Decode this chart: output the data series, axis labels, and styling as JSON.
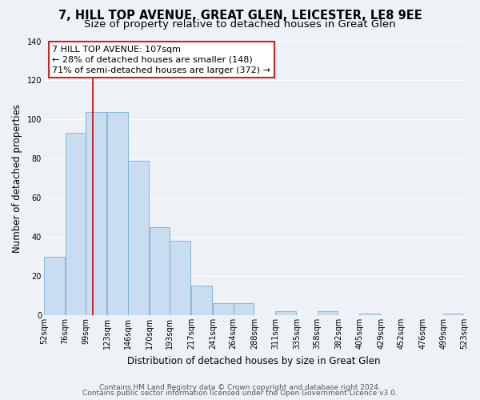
{
  "title": "7, HILL TOP AVENUE, GREAT GLEN, LEICESTER, LE8 9EE",
  "subtitle": "Size of property relative to detached houses in Great Glen",
  "xlabel": "Distribution of detached houses by size in Great Glen",
  "ylabel": "Number of detached properties",
  "bar_left_edges": [
    52,
    76,
    99,
    123,
    146,
    170,
    193,
    217,
    241,
    264,
    288,
    311,
    335,
    358,
    382,
    405,
    429,
    452,
    476,
    499
  ],
  "bar_heights": [
    30,
    93,
    104,
    104,
    79,
    45,
    38,
    15,
    6,
    6,
    0,
    2,
    0,
    2,
    0,
    1,
    0,
    0,
    0,
    1
  ],
  "bin_width": 23,
  "bar_color": "#c8ddf0",
  "bar_edgecolor": "#7aafd4",
  "vline_x": 107,
  "vline_color": "#cc0000",
  "ylim": [
    0,
    140
  ],
  "yticks": [
    0,
    20,
    40,
    60,
    80,
    100,
    120,
    140
  ],
  "xtick_labels": [
    "52sqm",
    "76sqm",
    "99sqm",
    "123sqm",
    "146sqm",
    "170sqm",
    "193sqm",
    "217sqm",
    "241sqm",
    "264sqm",
    "288sqm",
    "311sqm",
    "335sqm",
    "358sqm",
    "382sqm",
    "405sqm",
    "429sqm",
    "452sqm",
    "476sqm",
    "499sqm",
    "523sqm"
  ],
  "annotation_title": "7 HILL TOP AVENUE: 107sqm",
  "annotation_line1": "← 28% of detached houses are smaller (148)",
  "annotation_line2": "71% of semi-detached houses are larger (372) →",
  "footnote1": "Contains HM Land Registry data © Crown copyright and database right 2024.",
  "footnote2": "Contains public sector information licensed under the Open Government Licence v3.0.",
  "bg_color": "#eef2f7",
  "grid_color": "#ffffff",
  "title_fontsize": 10.5,
  "subtitle_fontsize": 9.5,
  "axis_label_fontsize": 8.5,
  "tick_fontsize": 7,
  "footnote_fontsize": 6.5,
  "annotation_fontsize": 8
}
